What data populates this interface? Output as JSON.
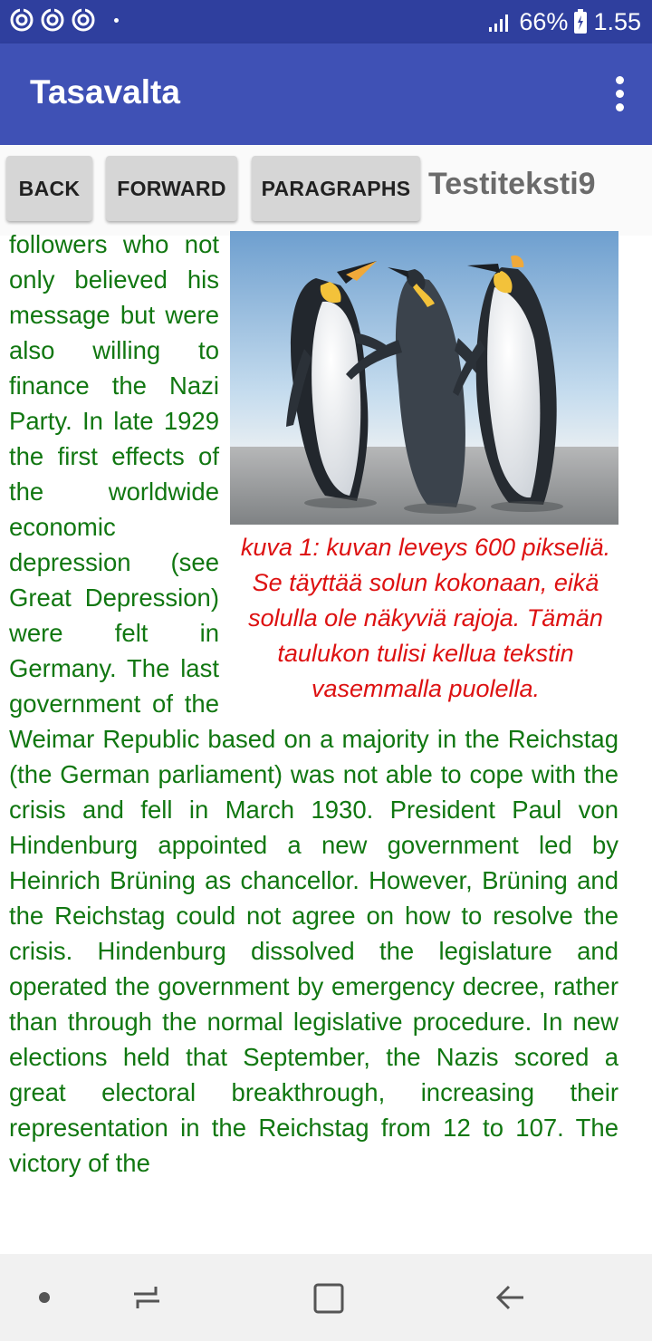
{
  "status_bar": {
    "battery_percent": "66%",
    "time": "1.55",
    "icons": [
      "sync-icon",
      "sync-icon",
      "sync-icon",
      "dot-icon",
      "signal-icon",
      "battery-icon"
    ]
  },
  "app_bar": {
    "title": "Tasavalta"
  },
  "toolbar": {
    "back_label": "BACK",
    "forward_label": "FORWARD",
    "paragraphs_label": "PARAGRAPHS",
    "document_title": "Testiteksti9"
  },
  "content": {
    "intro": "followers who not only believed his message but were also willing to finance the Nazi Party. In late 1929 the first effects of the worldwide economic depression (see Great Depression) were felt in Germany. The last government of the Weimar Republic based on a majority in the Reichstag (the German parliament) was not able to cope with the crisis and fell in March 1930. President Paul von Hindenburg appointed a new government led by Heinrich Brüning as chancellor. However, Brüning and the Reichstag could not agree on how to resolve the crisis. Hindenburg dissolved the legislature and operated the government by emergency decree, rather than through the normal legislative procedure. In new elections held that September, the Nazis scored a great electoral breakthrough, increasing their representation in the Reichstag from 12 to 107. The victory of the",
    "figure_caption": "kuva 1: kuvan leveys 600 pikseliä. Se täyttää solun kokonaan, eikä solulla ole näkyviä rajoja. Tämän taulukon tulisi kellua tekstin vasemmalla puolella.",
    "figure_image": "penguins-photo"
  },
  "colors": {
    "status_bar": "#2f3f9e",
    "app_bar": "#3f51b5",
    "body_text": "#117711",
    "caption_text": "#dd1111"
  },
  "nav_bar": {
    "icons": [
      "home-dot-icon",
      "recents-icon",
      "overview-icon",
      "back-arrow-icon"
    ]
  }
}
